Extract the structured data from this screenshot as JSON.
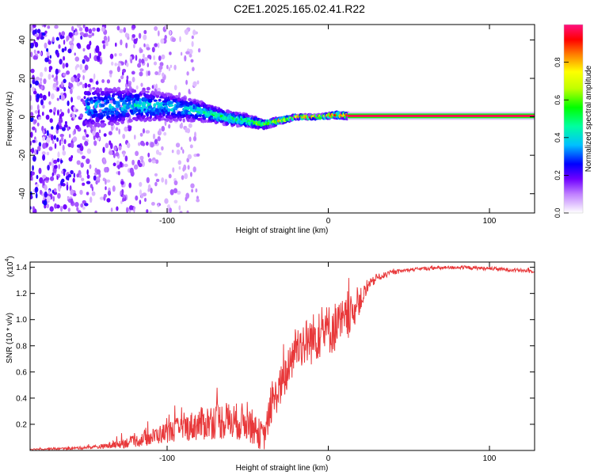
{
  "title": "C2E1.2025.165.02.41.R22",
  "chart_data": [
    {
      "type": "heatmap",
      "xlabel": "Height of straight line (km)",
      "ylabel": "Frequency (Hz)",
      "xlim": [
        -185,
        128
      ],
      "ylim": [
        -50,
        48
      ],
      "x_ticks": [
        -100,
        0,
        100
      ],
      "y_ticks": [
        40,
        20,
        0,
        -20,
        -40
      ],
      "colorbar": {
        "label": "Normalized spectral amplitude",
        "range": [
          0,
          1
        ],
        "ticks": [
          "0.0",
          "0.2",
          "0.4",
          "0.6",
          "0.8"
        ],
        "tick_values": [
          0.0,
          0.2,
          0.4,
          0.6,
          0.8
        ]
      },
      "ridge": {
        "x": [
          -140,
          -120,
          -100,
          -90,
          -80,
          -70,
          -60,
          -50,
          -45,
          -40,
          -35,
          -30,
          -25,
          -20,
          -15,
          -10,
          -5,
          0,
          5,
          10,
          128
        ],
        "y": [
          5,
          6,
          5,
          4,
          3,
          1,
          -1,
          -2,
          -3,
          -4,
          -3,
          -2,
          -1,
          0,
          0,
          0,
          0,
          0.5,
          1,
          0.5,
          0.5
        ],
        "amplitude": [
          0.3,
          0.35,
          0.32,
          0.32,
          0.4,
          0.42,
          0.45,
          0.5,
          0.55,
          0.65,
          0.7,
          0.75,
          0.8,
          0.85,
          0.88,
          0.9,
          0.9,
          0.9,
          0.92,
          0.93,
          0.95
        ],
        "spread_hz": [
          10,
          8,
          7,
          6,
          5,
          4,
          3.5,
          3,
          2.5,
          2,
          1.8,
          1.5,
          1.2,
          1,
          1,
          1,
          1,
          1,
          1.5,
          1.5,
          1
        ]
      }
    },
    {
      "type": "line",
      "xlabel": "Height of straight line (km)",
      "ylabel": "SNR (10 * v/v)",
      "y_multiplier": "(x10",
      "y_multiplier_exp": "4",
      "y_multiplier_close": ")",
      "xlim": [
        -185,
        128
      ],
      "ylim": [
        0,
        1.44
      ],
      "x_ticks": [
        -100,
        0,
        100
      ],
      "y_ticks": [
        0.2,
        0.4,
        0.6,
        0.8,
        1.0,
        1.2,
        1.4
      ],
      "color": "#e8383a",
      "series": [
        {
          "name": "SNR",
          "x": [
            -185,
            -160,
            -140,
            -130,
            -120,
            -110,
            -100,
            -90,
            -80,
            -70,
            -60,
            -50,
            -45,
            -40,
            -35,
            -30,
            -25,
            -20,
            -15,
            -10,
            -5,
            0,
            5,
            10,
            15,
            20,
            25,
            30,
            40,
            50,
            60,
            80,
            100,
            128
          ],
          "y": [
            0.01,
            0.015,
            0.03,
            0.05,
            0.07,
            0.1,
            0.14,
            0.17,
            0.2,
            0.23,
            0.22,
            0.22,
            0.15,
            0.1,
            0.35,
            0.48,
            0.6,
            0.8,
            0.82,
            0.85,
            0.9,
            0.92,
            0.95,
            0.98,
            1.05,
            1.15,
            1.25,
            1.32,
            1.36,
            1.38,
            1.39,
            1.4,
            1.39,
            1.37
          ],
          "noise": [
            0.005,
            0.01,
            0.02,
            0.04,
            0.05,
            0.07,
            0.09,
            0.11,
            0.14,
            0.16,
            0.16,
            0.16,
            0.14,
            0.12,
            0.15,
            0.17,
            0.18,
            0.2,
            0.2,
            0.22,
            0.22,
            0.22,
            0.22,
            0.2,
            0.15,
            0.1,
            0.06,
            0.03,
            0.02,
            0.015,
            0.015,
            0.015,
            0.015,
            0.015
          ]
        }
      ]
    }
  ]
}
